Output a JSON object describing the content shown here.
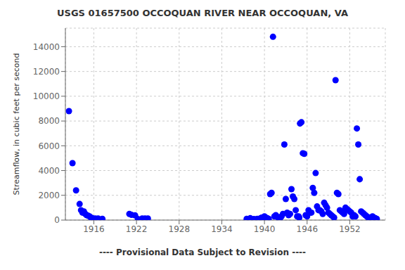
{
  "chart_data": {
    "type": "scatter",
    "title": "USGS 01657500 OCCOQUAN RIVER NEAR OCCOQUAN, VA",
    "subtitle": "---- Provisional Data Subject to Revision ----",
    "ylabel": "Streamflow, in cubic feet per second",
    "color": "blue",
    "grid": true,
    "xlim": [
      1912,
      1957
    ],
    "ylim": [
      0,
      15500
    ],
    "xticks": [
      1916,
      1922,
      1928,
      1934,
      1940,
      1946,
      1952
    ],
    "yticks": [
      0,
      2000,
      4000,
      6000,
      8000,
      10000,
      12000,
      14000
    ],
    "x": [
      1912.5,
      1913.0,
      1913.5,
      1914.0,
      1914.2,
      1914.4,
      1914.6,
      1914.8,
      1915.0,
      1915.2,
      1915.4,
      1915.6,
      1915.8,
      1916.0,
      1916.2,
      1916.6,
      1917.2,
      1921.0,
      1921.3,
      1921.8,
      1922.2,
      1922.8,
      1923.2,
      1923.6,
      1937.5,
      1938.0,
      1938.5,
      1938.8,
      1939.0,
      1939.2,
      1939.4,
      1939.6,
      1939.8,
      1940.0,
      1940.2,
      1940.4,
      1940.6,
      1940.8,
      1941.0,
      1941.2,
      1941.4,
      1941.6,
      1941.8,
      1942.0,
      1942.2,
      1942.4,
      1942.6,
      1942.8,
      1943.0,
      1943.2,
      1943.4,
      1943.6,
      1943.8,
      1944.0,
      1944.2,
      1944.4,
      1944.6,
      1944.8,
      1944.9,
      1945.0,
      1945.2,
      1945.4,
      1945.6,
      1945.8,
      1946.0,
      1946.2,
      1946.4,
      1946.6,
      1946.8,
      1947.0,
      1947.2,
      1947.4,
      1947.6,
      1947.8,
      1948.0,
      1948.2,
      1948.4,
      1948.6,
      1948.8,
      1949.0,
      1949.2,
      1949.4,
      1949.6,
      1949.8,
      1950.0,
      1950.2,
      1950.4,
      1950.6,
      1950.8,
      1951.0,
      1951.2,
      1951.4,
      1951.6,
      1951.8,
      1952.0,
      1952.2,
      1952.4,
      1952.6,
      1952.8,
      1953.0,
      1953.2,
      1953.4,
      1953.6,
      1953.8,
      1954.0,
      1954.2,
      1954.4,
      1954.6,
      1954.8,
      1955.0,
      1955.2,
      1955.4,
      1955.6,
      1955.8
    ],
    "values": [
      8800,
      4600,
      2400,
      1300,
      800,
      600,
      700,
      500,
      400,
      350,
      300,
      200,
      150,
      100,
      130,
      130,
      100,
      500,
      420,
      380,
      80,
      130,
      130,
      130,
      100,
      150,
      80,
      60,
      100,
      80,
      130,
      200,
      100,
      300,
      200,
      150,
      100,
      2100,
      2200,
      14800,
      300,
      400,
      250,
      200,
      150,
      300,
      500,
      6100,
      1700,
      600,
      400,
      500,
      2500,
      1900,
      1700,
      800,
      300,
      300,
      200,
      7800,
      7900,
      5400,
      5350,
      400,
      300,
      800,
      600,
      600,
      2600,
      2200,
      3800,
      1100,
      800,
      800,
      700,
      500,
      1400,
      1200,
      1000,
      600,
      500,
      400,
      300,
      200,
      11300,
      2200,
      2100,
      800,
      700,
      600,
      500,
      1000,
      900,
      800,
      700,
      600,
      300,
      400,
      300,
      7400,
      6100,
      3300,
      700,
      600,
      500,
      400,
      300,
      200,
      200,
      200,
      300,
      200,
      150,
      100
    ]
  }
}
